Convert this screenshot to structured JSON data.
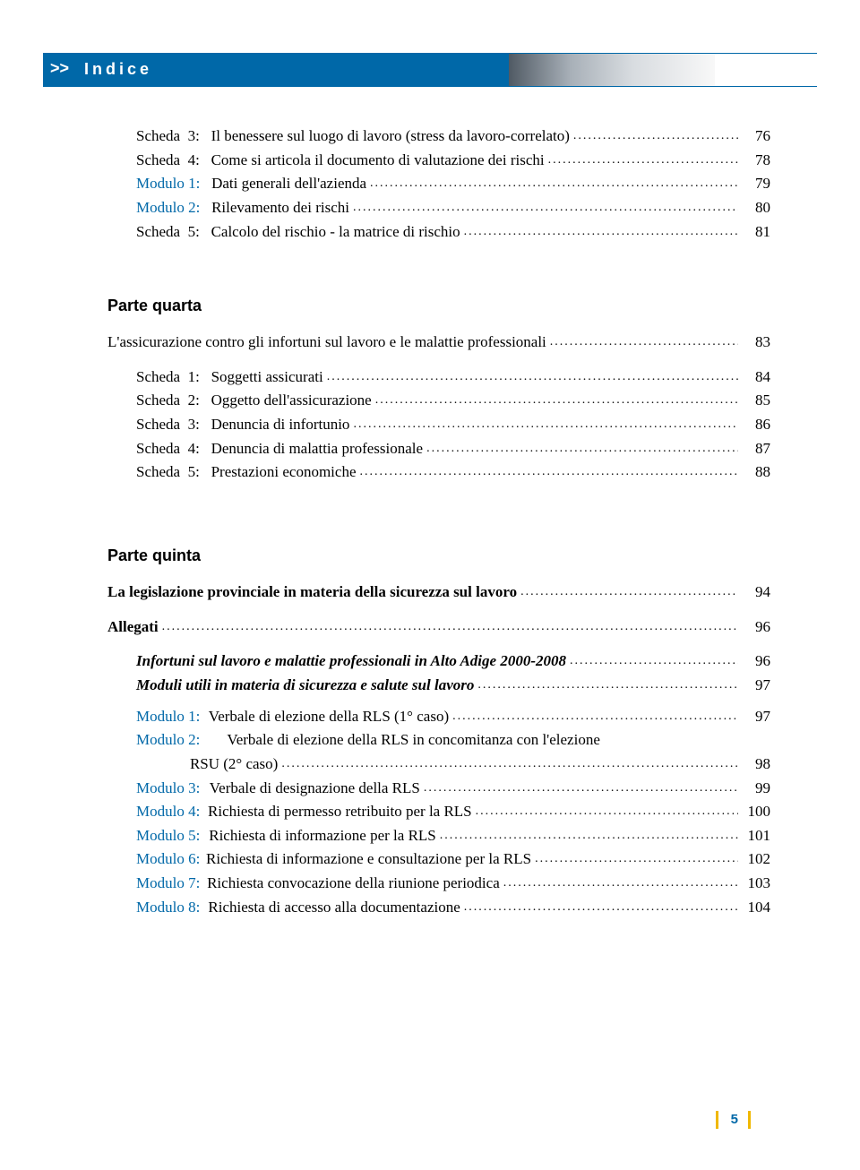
{
  "header": {
    "chevrons": ">>",
    "title": "Indice"
  },
  "colors": {
    "accent_blue": "#0068a8",
    "accent_yellow": "#f0b800",
    "text": "#000000",
    "bg": "#ffffff"
  },
  "toc_top": [
    {
      "label": "Scheda  3:",
      "title": "Il benessere sul luogo di lavoro (stress da lavoro-correlato)",
      "page": "76",
      "blue": false
    },
    {
      "label": "Scheda  4:",
      "title": "Come si articola il documento di valutazione dei rischi",
      "page": "78",
      "blue": false
    },
    {
      "label": "Modulo 1:",
      "title": "Dati generali dell'azienda",
      "page": "79",
      "blue": true
    },
    {
      "label": "Modulo 2:",
      "title": "Rilevamento dei rischi",
      "page": "80",
      "blue": true
    },
    {
      "label": "Scheda  5:",
      "title": "Calcolo del rischio - la matrice di rischio",
      "page": "81",
      "blue": false
    }
  ],
  "quarta": {
    "heading": "Parte quarta",
    "sub": {
      "title": "L'assicurazione contro gli infortuni sul lavoro e le malattie professionali",
      "page": "83"
    },
    "items": [
      {
        "label": "Scheda  1:",
        "title": "Soggetti assicurati",
        "page": "84"
      },
      {
        "label": "Scheda  2:",
        "title": "Oggetto dell'assicurazione",
        "page": "85"
      },
      {
        "label": "Scheda  3:",
        "title": "Denuncia di infortunio",
        "page": "86"
      },
      {
        "label": "Scheda  4:",
        "title": "Denuncia di malattia professionale",
        "page": "87"
      },
      {
        "label": "Scheda  5:",
        "title": "Prestazioni economiche",
        "page": "88"
      }
    ]
  },
  "quinta": {
    "heading": "Parte quinta",
    "sub1": {
      "title": "La legislazione provinciale in materia della sicurezza sul lavoro",
      "page": "94"
    },
    "allegati": {
      "title": "Allegati",
      "page": "96"
    },
    "italics": [
      {
        "title": "Infortuni sul lavoro e malattie professionali in Alto Adige 2000-2008",
        "page": "96"
      },
      {
        "title": "Moduli utili in materia di sicurezza e salute sul lavoro",
        "page": "97"
      }
    ],
    "moduli": [
      {
        "label": "Modulo 1:",
        "title": "Verbale di elezione della RLS (1° caso)",
        "page": "97",
        "wrap": false
      },
      {
        "label": "Modulo 2:",
        "title_line1": "Verbale di elezione della RLS in concomitanza con l'elezione",
        "title_line2": "RSU (2° caso)",
        "page": "98",
        "wrap": true
      },
      {
        "label": "Modulo 3:",
        "title": "Verbale di designazione della RLS",
        "page": "99",
        "wrap": false
      },
      {
        "label": "Modulo 4:",
        "title": "Richiesta di permesso retribuito per la RLS",
        "page": "100",
        "wrap": false
      },
      {
        "label": "Modulo 5:",
        "title": "Richiesta di informazione per la RLS",
        "page": "101",
        "wrap": false
      },
      {
        "label": "Modulo 6:",
        "title": "Richiesta di informazione e consultazione per la RLS",
        "page": "102",
        "wrap": false
      },
      {
        "label": "Modulo 7:",
        "title": "Richiesta convocazione della riunione periodica",
        "page": "103",
        "wrap": false
      },
      {
        "label": "Modulo 8:",
        "title": "Richiesta di accesso alla documentazione",
        "page": "104",
        "wrap": false
      }
    ]
  },
  "page_number": "5"
}
